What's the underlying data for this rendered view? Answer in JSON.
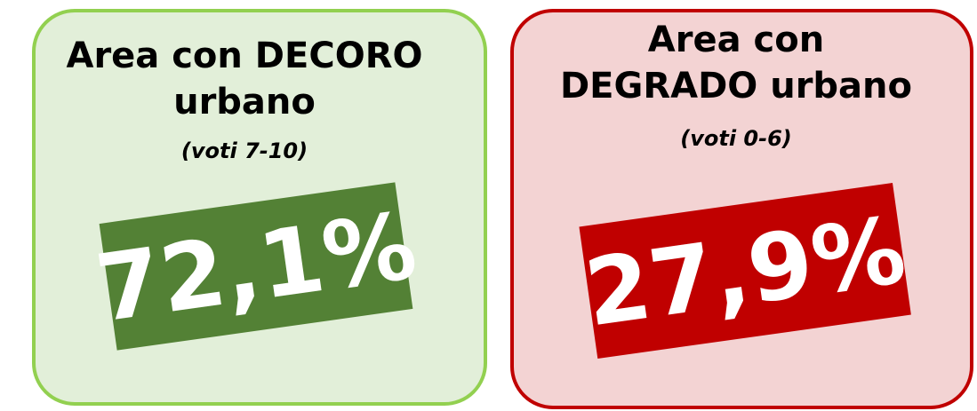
{
  "cards": [
    {
      "title_lines": [
        "Area con DECORO",
        "urbano"
      ],
      "subtitle": "(voti 7-10)",
      "value": "72,1%"
    },
    {
      "title_lines": [
        "Area con",
        "DEGRADO urbano"
      ],
      "subtitle": "(voti 0-6)",
      "value": "27,9%"
    }
  ]
}
